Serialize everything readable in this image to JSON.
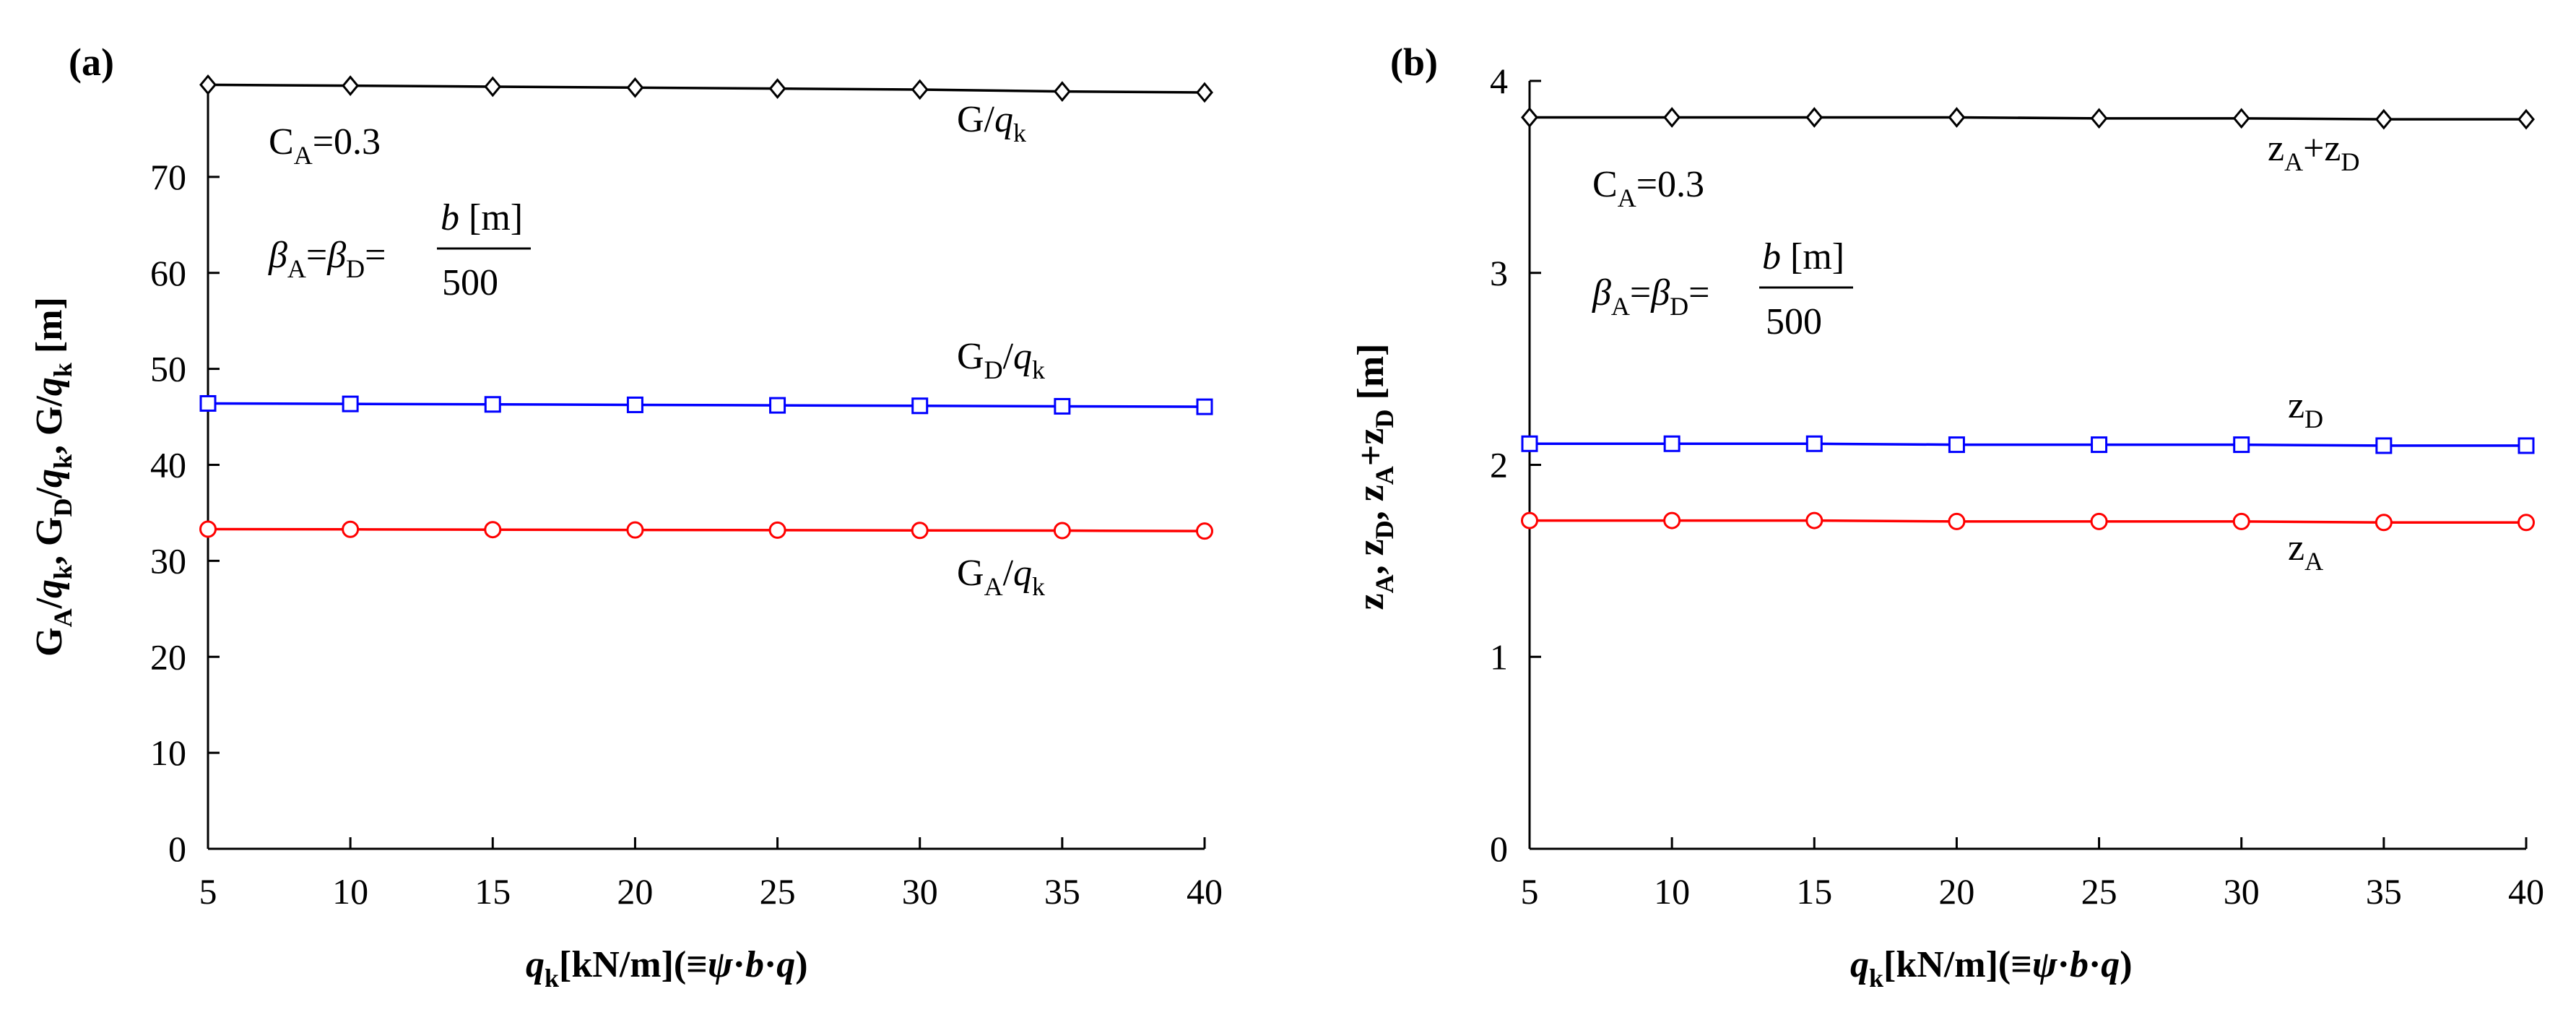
{
  "chart_data": [
    {
      "type": "line",
      "panel_label": "(a)",
      "x": [
        5,
        10,
        15,
        20,
        25,
        30,
        35,
        40
      ],
      "xticks": [
        "5",
        "10",
        "15",
        "20",
        "25",
        "30",
        "35",
        "40"
      ],
      "yticks": [
        "0",
        "10",
        "20",
        "30",
        "40",
        "50",
        "60",
        "70"
      ],
      "xlim": [
        5,
        40
      ],
      "ylim": [
        0,
        80
      ],
      "xlabel": {
        "q": "q",
        "sub": "k",
        "rest": "[kN/m](≡",
        "psi": "ψ",
        "dot1": "·",
        "b": "b",
        "dot2": "·",
        "qq": "q",
        "close": ")"
      },
      "ylabel": {
        "G1": "G",
        "s1": "A",
        "slash1": "/",
        "q1": "q",
        "k1": "k",
        "c1": ", G",
        "s2": "D",
        "slash2": "/",
        "q2": "q",
        "k2": "k",
        "c2": ", G/",
        "q3": "q",
        "k3": "k",
        "unit": " [m]"
      },
      "annotation": {
        "ca_c": "C",
        "ca_sub": "A",
        "ca_val": "=0.3",
        "b1": "β",
        "b1s": "A",
        "eq1": "=",
        "b2": "β",
        "b2s": "D",
        "eq2": "=",
        "num_b": "b",
        "num_unit": " [m]",
        "den": "500"
      },
      "series": [
        {
          "name": "G/q_k",
          "label_main": "G/",
          "label_q": "q",
          "label_sub": "k",
          "color": "#000000",
          "marker": "diamond",
          "values": [
            79.6,
            79.5,
            79.4,
            79.3,
            79.2,
            79.1,
            78.9,
            78.8
          ]
        },
        {
          "name": "G_D/q_k",
          "label_main": "G",
          "label_sub1": "D",
          "label_slash": "/",
          "label_q": "q",
          "label_sub": "k",
          "color": "#0000ff",
          "marker": "square",
          "values": [
            46.4,
            46.35,
            46.3,
            46.25,
            46.2,
            46.15,
            46.1,
            46.05
          ]
        },
        {
          "name": "G_A/q_k",
          "label_main": "G",
          "label_sub1": "A",
          "label_slash": "/",
          "label_q": "q",
          "label_sub": "k",
          "color": "#ff0000",
          "marker": "circle",
          "values": [
            33.3,
            33.28,
            33.25,
            33.22,
            33.2,
            33.17,
            33.15,
            33.1
          ]
        }
      ]
    },
    {
      "type": "line",
      "panel_label": "(b)",
      "x": [
        5,
        10,
        15,
        20,
        25,
        30,
        35,
        40
      ],
      "xticks": [
        "5",
        "10",
        "15",
        "20",
        "25",
        "30",
        "35",
        "40"
      ],
      "yticks": [
        "0",
        "1",
        "2",
        "3",
        "4"
      ],
      "xlim": [
        5,
        40
      ],
      "ylim": [
        0,
        4
      ],
      "xlabel": {
        "q": "q",
        "sub": "k",
        "rest": "[kN/m](≡",
        "psi": "ψ",
        "dot1": "·",
        "b": "b",
        "dot2": "·",
        "qq": "q",
        "close": ")"
      },
      "ylabel": {
        "z1": "z",
        "s1": "A",
        "c1": ", z",
        "s2": "D",
        "c2": ", z",
        "s3": "A",
        "plus": "+z",
        "s4": "D",
        "unit": " [m]"
      },
      "annotation": {
        "ca_c": "C",
        "ca_sub": "A",
        "ca_val": "=0.3",
        "b1": "β",
        "b1s": "A",
        "eq1": "=",
        "b2": "β",
        "b2s": "D",
        "eq2": "=",
        "num_b": "b",
        "num_unit": " [m]",
        "den": "500"
      },
      "series": [
        {
          "name": "z_A+z_D",
          "label_z1": "z",
          "label_s1": "A",
          "label_plus": "+z",
          "label_s2": "D",
          "color": "#000000",
          "marker": "diamond",
          "values": [
            3.81,
            3.81,
            3.81,
            3.81,
            3.805,
            3.805,
            3.8,
            3.8
          ]
        },
        {
          "name": "z_D",
          "label_z": "z",
          "label_s": "D",
          "color": "#0000ff",
          "marker": "square",
          "values": [
            2.11,
            2.11,
            2.11,
            2.105,
            2.105,
            2.105,
            2.1,
            2.1
          ]
        },
        {
          "name": "z_A",
          "label_z": "z",
          "label_s": "A",
          "color": "#ff0000",
          "marker": "circle",
          "values": [
            1.71,
            1.71,
            1.71,
            1.705,
            1.705,
            1.705,
            1.7,
            1.7
          ]
        }
      ]
    }
  ]
}
